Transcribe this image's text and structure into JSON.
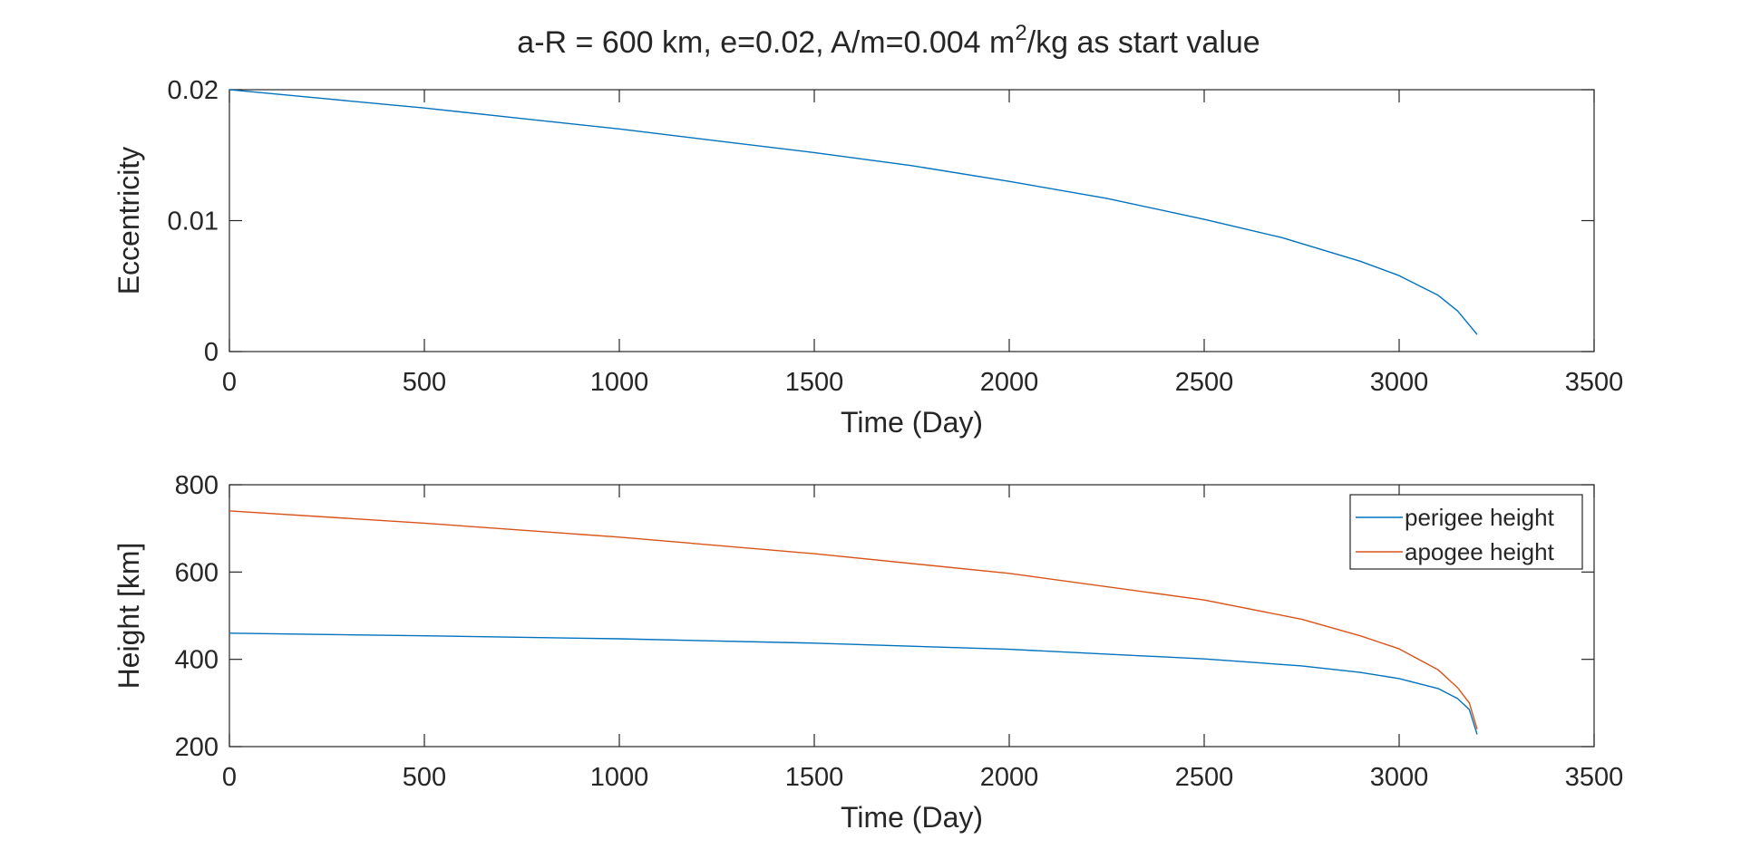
{
  "chart_data": [
    {
      "type": "line",
      "title": "a-R = 600 km, e=0.02, A/m=0.004 m²/kg as start value",
      "title_parts": {
        "before": "a-R = 600 km, e=0.02, A/m=0.004 m",
        "superscript": "2",
        "after": "/kg as start value"
      },
      "xlabel": "Time (Day)",
      "ylabel": "Eccentricity",
      "xlim": [
        0,
        3500
      ],
      "ylim": [
        0,
        0.02
      ],
      "xticks": [
        0,
        500,
        1000,
        1500,
        2000,
        2500,
        3000,
        3500
      ],
      "xtick_labels": [
        "0",
        "500",
        "1000",
        "1500",
        "2000",
        "2500",
        "3000",
        "3500"
      ],
      "yticks": [
        0,
        0.01,
        0.02
      ],
      "ytick_labels": [
        "0",
        "0.01",
        "0.02"
      ],
      "grid": false,
      "series": [
        {
          "color": "#0072BD",
          "x": [
            0,
            250,
            500,
            750,
            1000,
            1250,
            1500,
            1750,
            2000,
            2250,
            2500,
            2700,
            2900,
            3000,
            3100,
            3150,
            3200
          ],
          "y": [
            0.02,
            0.0193,
            0.0186,
            0.0178,
            0.017,
            0.0161,
            0.0152,
            0.0142,
            0.013,
            0.0117,
            0.0101,
            0.0087,
            0.0069,
            0.0058,
            0.0043,
            0.0031,
            0.0013
          ]
        }
      ]
    },
    {
      "type": "line",
      "xlabel": "Time (Day)",
      "ylabel": "Height [km]",
      "xlim": [
        0,
        3500
      ],
      "ylim": [
        200,
        800
      ],
      "xticks": [
        0,
        500,
        1000,
        1500,
        2000,
        2500,
        3000,
        3500
      ],
      "xtick_labels": [
        "0",
        "500",
        "1000",
        "1500",
        "2000",
        "2500",
        "3000",
        "3500"
      ],
      "yticks": [
        200,
        400,
        600,
        800
      ],
      "ytick_labels": [
        "200",
        "400",
        "600",
        "800"
      ],
      "grid": false,
      "legend": "top-right",
      "series": [
        {
          "name": "perigee height",
          "color": "#0072BD",
          "x": [
            0,
            500,
            1000,
            1500,
            2000,
            2500,
            2750,
            2900,
            3000,
            3100,
            3150,
            3180,
            3200
          ],
          "y": [
            460,
            454,
            447,
            437,
            423,
            401,
            385,
            370,
            356,
            333,
            310,
            285,
            228
          ]
        },
        {
          "name": "apogee height",
          "color": "#D95319",
          "x": [
            0,
            500,
            1000,
            1500,
            2000,
            2500,
            2750,
            2900,
            3000,
            3100,
            3150,
            3180,
            3200
          ],
          "y": [
            740,
            712,
            680,
            642,
            597,
            536,
            492,
            454,
            424,
            376,
            335,
            300,
            240
          ]
        }
      ]
    }
  ]
}
